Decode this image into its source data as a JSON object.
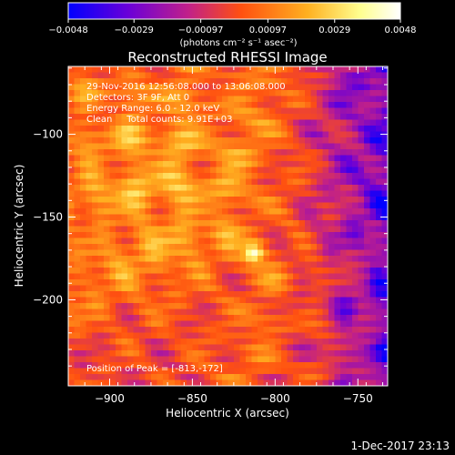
{
  "chart_data": {
    "type": "heatmap",
    "title": "Reconstructed RHESSI Image",
    "xlabel": "Heliocentric X (arcsec)",
    "ylabel": "Heliocentric Y (arcsec)",
    "xlim": [
      -925,
      -732
    ],
    "ylim": [
      -252,
      -59
    ],
    "x_ticks": [
      -900,
      -850,
      -800,
      -750
    ],
    "x_tick_labels": [
      "−900",
      "−850",
      "−800",
      "−750"
    ],
    "y_ticks": [
      -100,
      -150,
      -200
    ],
    "y_tick_labels": [
      "−100",
      "−150",
      "−200"
    ],
    "colorbar": {
      "range": [
        -0.0048,
        0.0048
      ],
      "ticks": [
        -0.0048,
        -0.0029,
        -0.00097,
        0.00097,
        0.0029,
        0.0048
      ],
      "tick_labels": [
        "−0.0048",
        "−0.0029",
        "−0.00097",
        "0.00097",
        "0.0029",
        "0.0048"
      ],
      "unit_label": "(photons cm⁻² s⁻¹ asec⁻²)",
      "colors": [
        "#0000ff",
        "#6a00d8",
        "#c0208a",
        "#ff5010",
        "#ffb020",
        "#ffff90",
        "#ffffff"
      ]
    },
    "peak": {
      "x": -813,
      "y": -172
    },
    "annotations": [
      "29-Nov-2016 12:56:08.000 to 13:06:08.000",
      "Detectors: 3F 9F, Att 0",
      "Energy Range: 6.0 - 12.0 keV",
      "Clean     Total counts: 9.91E+03"
    ],
    "peak_label": "Position of Peak = [-813,-172]"
  },
  "footer": {
    "date": "1-Dec-2017 23:13"
  }
}
